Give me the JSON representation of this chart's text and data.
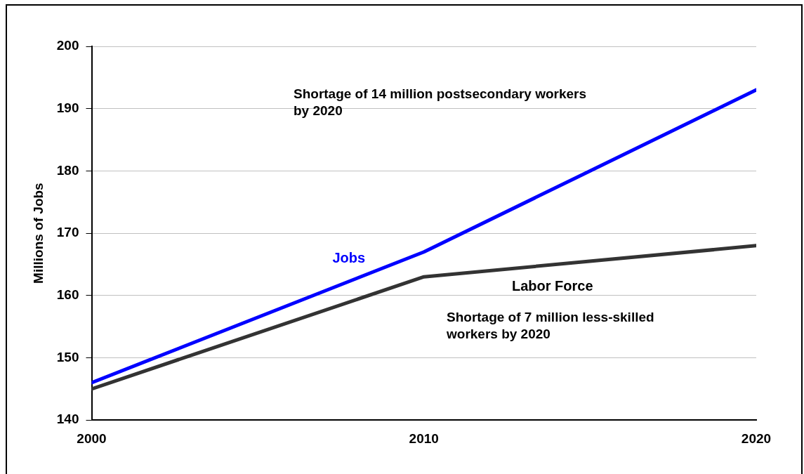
{
  "chart_data": {
    "type": "line",
    "ylabel": "Millions of Jobs",
    "x": [
      2000,
      2010,
      2020
    ],
    "series": [
      {
        "name": "Jobs",
        "color": "#0000ff",
        "values": [
          146,
          167,
          193
        ]
      },
      {
        "name": "Labor Force",
        "color": "#333333",
        "values": [
          145,
          163,
          168
        ]
      }
    ],
    "xlim": [
      2000,
      2020
    ],
    "xticks": [
      2000,
      2010,
      2020
    ],
    "ylim": [
      140,
      200
    ],
    "yticks": [
      140,
      150,
      160,
      170,
      180,
      190,
      200
    ],
    "grid": "y",
    "legend": false,
    "marker": "none",
    "line_style": "solid",
    "annotations": [
      "Shortage of 14 million postsecondary workers by 2020",
      "Shortage of 7 million less-skilled workers by 2020"
    ]
  }
}
